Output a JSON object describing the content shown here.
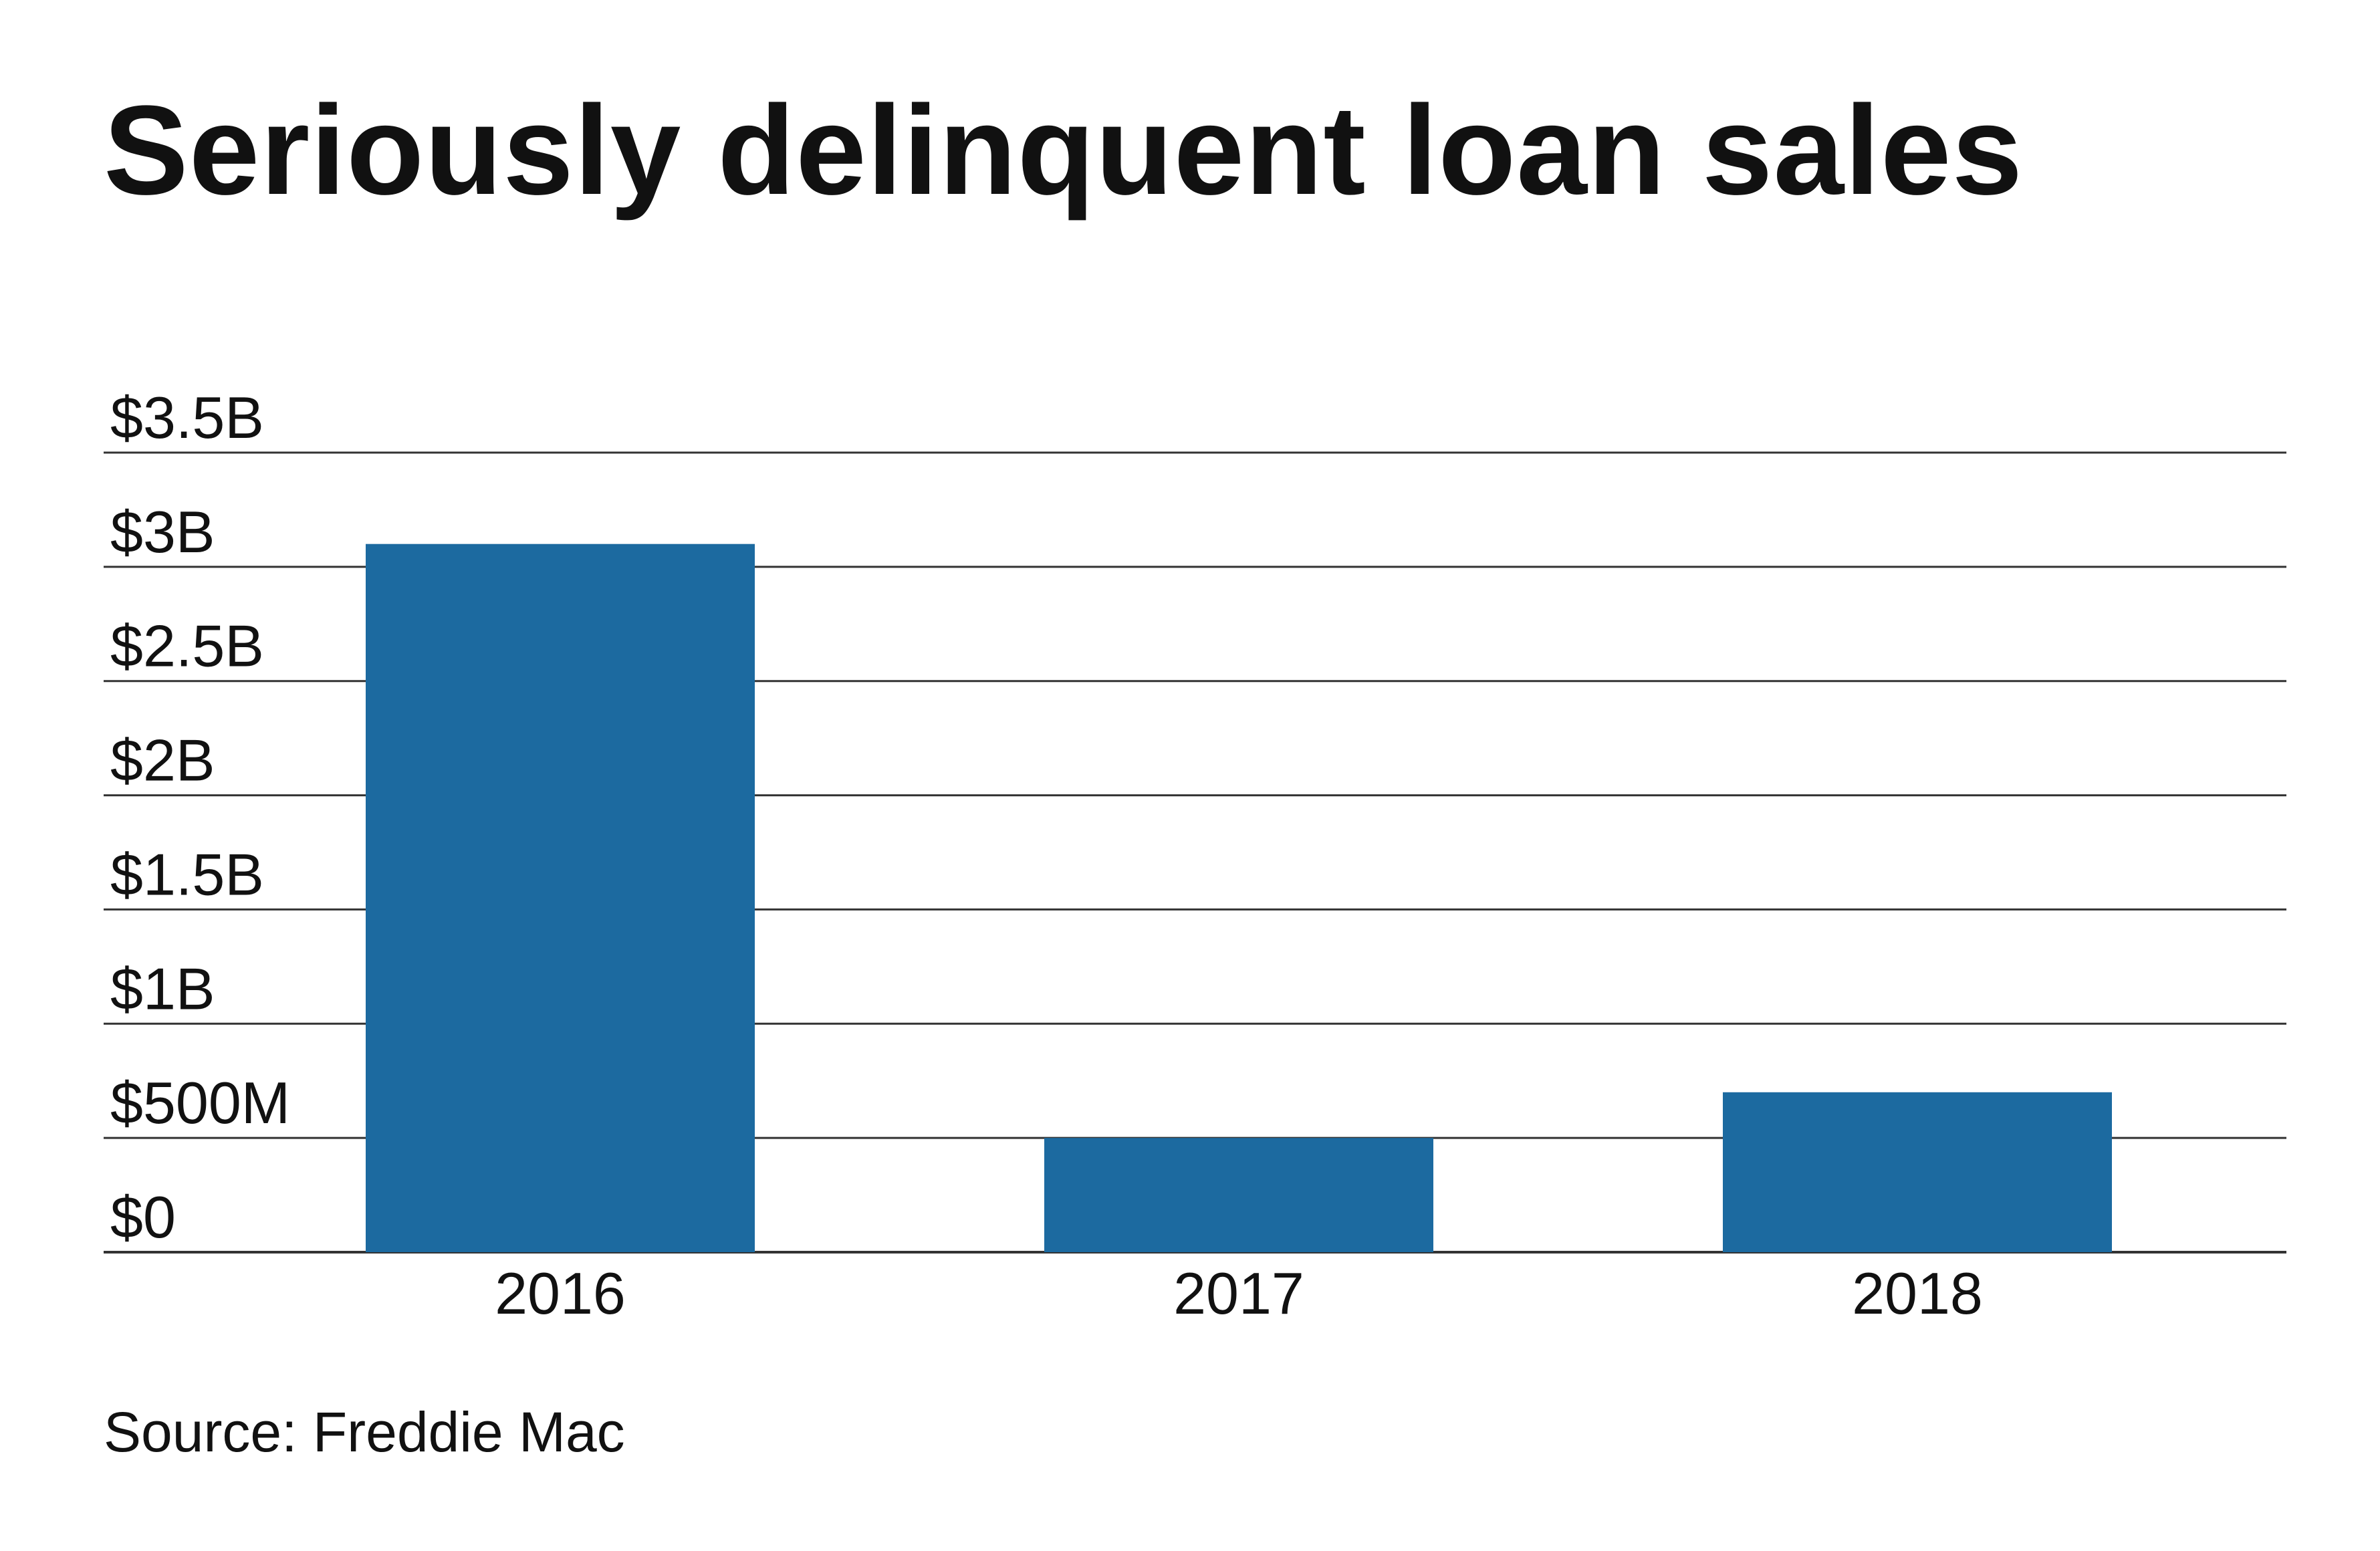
{
  "chart_data": {
    "type": "bar",
    "title": "Seriously delinquent loan sales",
    "categories": [
      "2016",
      "2017",
      "2018"
    ],
    "values": [
      3.1,
      0.5,
      0.7
    ],
    "unit": "$ billions",
    "ylim": [
      0,
      3.5
    ],
    "yticks": [
      0,
      0.5,
      1,
      1.5,
      2,
      2.5,
      3,
      3.5
    ],
    "ytick_labels": [
      "$0",
      "$500M",
      "$1B",
      "$1.5B",
      "$2B",
      "$2.5B",
      "$3B",
      "$3.5B"
    ],
    "xlabel": "",
    "ylabel": "",
    "grid": true,
    "legend": "none",
    "bar_color": "#1c6aa0",
    "grid_color": "#333333"
  },
  "source": "Source: Freddie Mac"
}
